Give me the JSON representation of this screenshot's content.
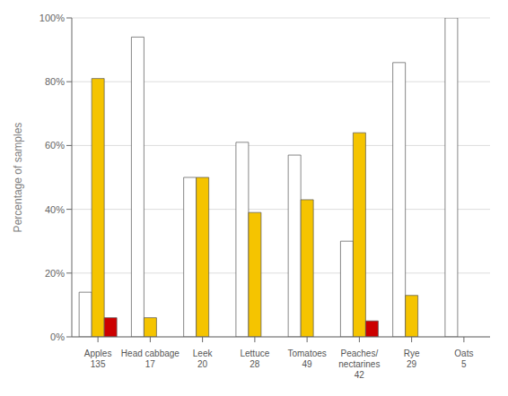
{
  "chart_data": {
    "type": "bar",
    "categories": [
      "Apples\n135",
      "Head cabbage\n17",
      "Leek\n20",
      "Lettuce\n28",
      "Tomatoes\n49",
      "Peaches/\nnectarines\n42",
      "Rye\n29",
      "Oats\n5"
    ],
    "series": [
      {
        "color": "#FFFFFF",
        "values": [
          14,
          94,
          50,
          61,
          57,
          30,
          86,
          100
        ]
      },
      {
        "color": "#F5C400",
        "values": [
          81,
          6,
          50,
          39,
          43,
          64,
          13,
          0
        ]
      },
      {
        "color": "#CC0000",
        "values": [
          6,
          0,
          0,
          0,
          0,
          5,
          0,
          0
        ]
      }
    ],
    "ylabel": "Percentage of samples",
    "ylim": [
      0,
      100
    ],
    "yticks": [
      {
        "value": 0,
        "label": "0%"
      },
      {
        "value": 20,
        "label": "20%"
      },
      {
        "value": 40,
        "label": "40%"
      },
      {
        "value": 60,
        "label": "60%"
      },
      {
        "value": 80,
        "label": "80%"
      },
      {
        "value": 100,
        "label": "100%"
      }
    ],
    "grid": true
  }
}
